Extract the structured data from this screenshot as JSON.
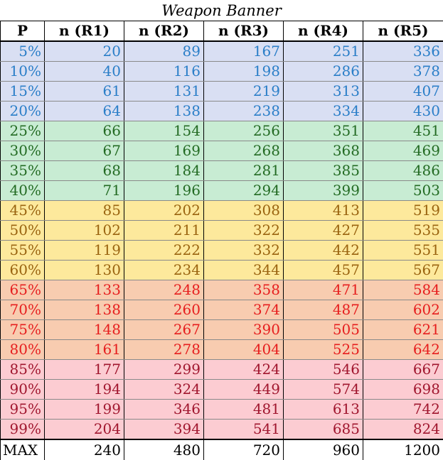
{
  "title": "Weapon Banner",
  "headers": [
    "P",
    "n (R1)",
    "n (R2)",
    "n (R3)",
    "n (R4)",
    "n (R5)"
  ],
  "tiers": {
    "blue": {
      "background": "#d9dff3",
      "text": "#2a7ec8"
    },
    "green": {
      "background": "#c8ecd3",
      "text": "#236b23"
    },
    "yellow": {
      "background": "#fde99c",
      "text": "#9a6410"
    },
    "orange": {
      "background": "#f8ccb0",
      "text": "#e61e1e"
    },
    "pink": {
      "background": "#fcccd2",
      "text": "#a0162e"
    }
  },
  "rows": [
    {
      "tier": "blue",
      "cells": [
        "5%",
        "20",
        "89",
        "167",
        "251",
        "336"
      ]
    },
    {
      "tier": "blue",
      "cells": [
        "10%",
        "40",
        "116",
        "198",
        "286",
        "378"
      ]
    },
    {
      "tier": "blue",
      "cells": [
        "15%",
        "61",
        "131",
        "219",
        "313",
        "407"
      ]
    },
    {
      "tier": "blue",
      "cells": [
        "20%",
        "64",
        "138",
        "238",
        "334",
        "430"
      ]
    },
    {
      "tier": "green",
      "cells": [
        "25%",
        "66",
        "154",
        "256",
        "351",
        "451"
      ]
    },
    {
      "tier": "green",
      "cells": [
        "30%",
        "67",
        "169",
        "268",
        "368",
        "469"
      ]
    },
    {
      "tier": "green",
      "cells": [
        "35%",
        "68",
        "184",
        "281",
        "385",
        "486"
      ]
    },
    {
      "tier": "green",
      "cells": [
        "40%",
        "71",
        "196",
        "294",
        "399",
        "503"
      ]
    },
    {
      "tier": "yellow",
      "cells": [
        "45%",
        "85",
        "202",
        "308",
        "413",
        "519"
      ]
    },
    {
      "tier": "yellow",
      "cells": [
        "50%",
        "102",
        "211",
        "322",
        "427",
        "535"
      ]
    },
    {
      "tier": "yellow",
      "cells": [
        "55%",
        "119",
        "222",
        "332",
        "442",
        "551"
      ]
    },
    {
      "tier": "yellow",
      "cells": [
        "60%",
        "130",
        "234",
        "344",
        "457",
        "567"
      ]
    },
    {
      "tier": "orange",
      "cells": [
        "65%",
        "133",
        "248",
        "358",
        "471",
        "584"
      ]
    },
    {
      "tier": "orange",
      "cells": [
        "70%",
        "138",
        "260",
        "374",
        "487",
        "602"
      ]
    },
    {
      "tier": "orange",
      "cells": [
        "75%",
        "148",
        "267",
        "390",
        "505",
        "621"
      ]
    },
    {
      "tier": "orange",
      "cells": [
        "80%",
        "161",
        "278",
        "404",
        "525",
        "642"
      ]
    },
    {
      "tier": "pink",
      "cells": [
        "85%",
        "177",
        "299",
        "424",
        "546",
        "667"
      ]
    },
    {
      "tier": "pink",
      "cells": [
        "90%",
        "194",
        "324",
        "449",
        "574",
        "698"
      ]
    },
    {
      "tier": "pink",
      "cells": [
        "95%",
        "199",
        "346",
        "481",
        "613",
        "742"
      ]
    },
    {
      "tier": "pink",
      "cells": [
        "99%",
        "204",
        "394",
        "541",
        "685",
        "824"
      ]
    }
  ],
  "footer": [
    "MAX",
    "240",
    "480",
    "720",
    "960",
    "1200"
  ]
}
